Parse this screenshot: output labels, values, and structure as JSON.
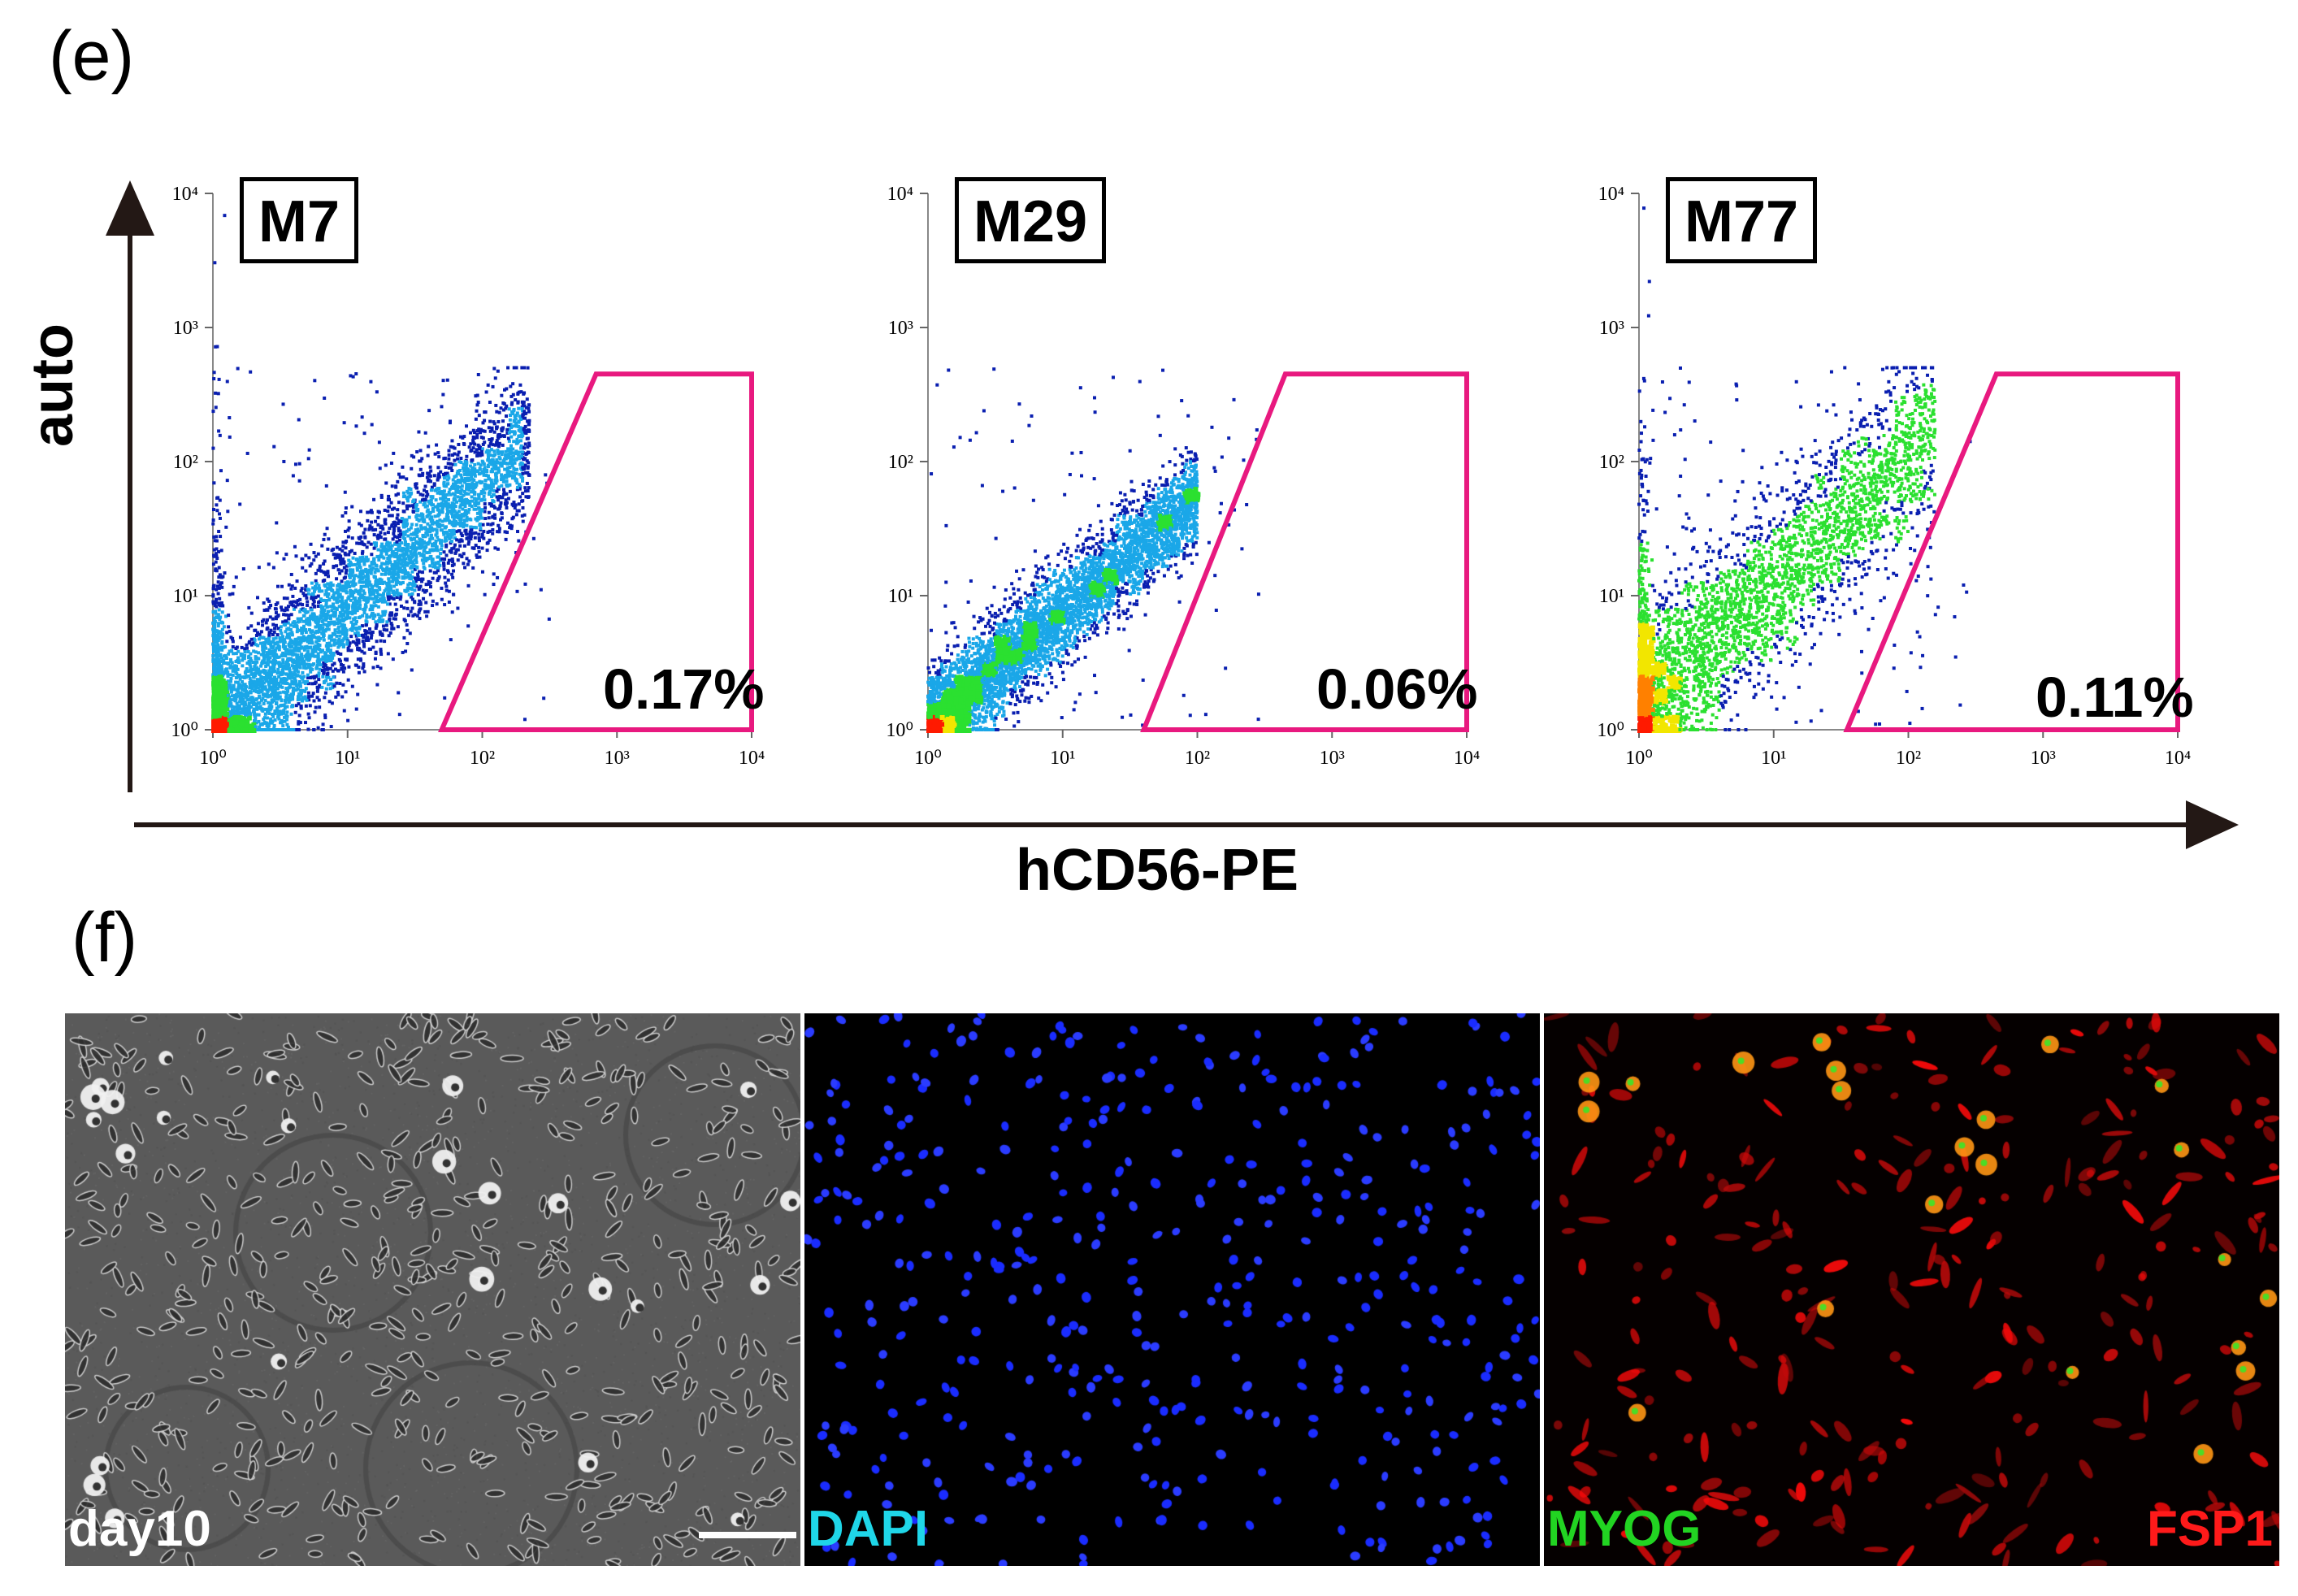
{
  "panels": {
    "e": {
      "label": "(e)"
    },
    "f": {
      "label": "(f)"
    }
  },
  "axes": {
    "y_title": "auto",
    "x_title": "hCD56-PE",
    "tick_labels": [
      "10⁰",
      "10¹",
      "10²",
      "10³",
      "10⁴"
    ],
    "arrow_color": "#231815"
  },
  "gate_color": "#e8197f",
  "chart_data": [
    {
      "type": "scatter",
      "title": "M7",
      "xlabel": "hCD56-PE",
      "ylabel": "auto",
      "x_scale": "log",
      "y_scale": "log",
      "xlim": [
        1,
        10000
      ],
      "ylim": [
        1,
        10000
      ],
      "xticks": [
        1,
        10,
        100,
        1000,
        10000
      ],
      "yticks": [
        1,
        10,
        100,
        1000,
        10000
      ],
      "gate": {
        "vertices": [
          [
            50,
            1
          ],
          [
            10000,
            1
          ],
          [
            10000,
            450
          ],
          [
            700,
            450
          ]
        ],
        "label": "0.17%",
        "percent": 0.17
      },
      "population": {
        "log_x_center": 1.05,
        "log_y_center": 0.95,
        "slope": 0.95,
        "log_x_span": [
          0,
          2.35
        ],
        "spread": 0.28,
        "count": 5000,
        "axis_pileup": true
      },
      "density_palette": [
        "#0a1fb0",
        "#1aa7e8",
        "#2be030",
        "#f2e600",
        "#ff1a00"
      ]
    },
    {
      "type": "scatter",
      "title": "M29",
      "xlabel": "hCD56-PE",
      "ylabel": "auto",
      "x_scale": "log",
      "y_scale": "log",
      "xlim": [
        1,
        10000
      ],
      "ylim": [
        1,
        10000
      ],
      "xticks": [
        1,
        10,
        100,
        1000,
        10000
      ],
      "yticks": [
        1,
        10,
        100,
        1000,
        10000
      ],
      "gate": {
        "vertices": [
          [
            40,
            1
          ],
          [
            10000,
            1
          ],
          [
            10000,
            450
          ],
          [
            450,
            450
          ]
        ],
        "label": "0.06%",
        "percent": 0.06
      },
      "population": {
        "log_x_center": 0.9,
        "log_y_center": 0.8,
        "slope": 0.85,
        "log_x_span": [
          0,
          2.0
        ],
        "spread": 0.18,
        "count": 5000,
        "axis_pileup": false
      },
      "density_palette": [
        "#0a1fb0",
        "#1aa7e8",
        "#2be030",
        "#f2e600",
        "#ff1a00"
      ]
    },
    {
      "type": "scatter",
      "title": "M77",
      "xlabel": "hCD56-PE",
      "ylabel": "auto",
      "x_scale": "log",
      "y_scale": "log",
      "xlim": [
        1,
        10000
      ],
      "ylim": [
        1,
        10000
      ],
      "xticks": [
        1,
        10,
        100,
        1000,
        10000
      ],
      "yticks": [
        1,
        10,
        100,
        1000,
        10000
      ],
      "gate": {
        "vertices": [
          [
            35,
            1
          ],
          [
            10000,
            1
          ],
          [
            10000,
            450
          ],
          [
            450,
            450
          ]
        ],
        "label": "0.11%",
        "percent": 0.11
      },
      "population": {
        "log_x_center": 1.0,
        "log_y_center": 1.1,
        "slope": 0.95,
        "log_x_span": [
          0,
          2.2
        ],
        "spread": 0.33,
        "count": 3000,
        "axis_pileup": true
      },
      "density_palette": [
        "#0a1fb0",
        "#2be030",
        "#f2e600",
        "#ff8000",
        "#ff1a00"
      ]
    }
  ],
  "micrographs": [
    {
      "name": "phase-contrast",
      "labels": [
        {
          "text": "day10",
          "color": "#ffffff"
        }
      ],
      "scale_bar": true
    },
    {
      "name": "dapi",
      "labels": [
        {
          "text": "DAPI",
          "color": "#1fd6e8"
        }
      ],
      "scale_bar": false
    },
    {
      "name": "myog-fsp1",
      "labels": [
        {
          "text": "MYOG",
          "color": "#22d422"
        },
        {
          "text": "FSP1",
          "color": "#ff1a1a"
        }
      ],
      "scale_bar": false
    }
  ]
}
